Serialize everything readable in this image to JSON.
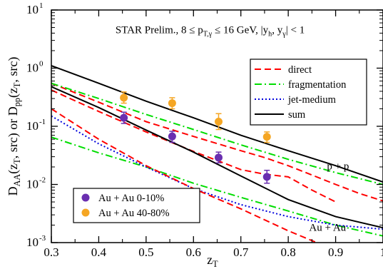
{
  "chart_data": {
    "type": "line",
    "xlim": [
      0.3,
      1.0
    ],
    "ylim": [
      0.001,
      10
    ],
    "yscale": "log",
    "grid": false,
    "xticks": [
      0.3,
      0.4,
      0.5,
      0.6,
      0.7,
      0.8,
      0.9,
      1.0
    ],
    "xtick_labels": [
      "0.3",
      "0.4",
      "0.5",
      "0.6",
      "0.7",
      "0.8",
      "0.9",
      "1"
    ],
    "yticks": [
      0.001,
      0.01,
      0.1,
      1,
      10
    ],
    "ytick_labels": [
      {
        "base": "10",
        "exp": "-3"
      },
      {
        "base": "10",
        "exp": "-2"
      },
      {
        "base": "10",
        "exp": "-1"
      },
      {
        "base": "10",
        "exp": "0"
      },
      {
        "base": "10",
        "exp": "1"
      }
    ],
    "xlabel": {
      "main": "z",
      "sub": "T"
    },
    "ylabel": "D_AA(z_T, src) or D_pp(z_T, src)",
    "ylabel_parts": [
      {
        "t": "D",
        "s": "n"
      },
      {
        "t": "AA",
        "s": "sub"
      },
      {
        "t": "(z",
        "s": "n"
      },
      {
        "t": "T",
        "s": "sub"
      },
      {
        "t": ", src) or D",
        "s": "n"
      },
      {
        "t": "pp",
        "s": "sub"
      },
      {
        "t": "(z",
        "s": "n"
      },
      {
        "t": "T",
        "s": "sub"
      },
      {
        "t": ", src)",
        "s": "n"
      }
    ],
    "title_parts": [
      {
        "t": "STAR Prelim., 8 ≤ p",
        "s": "n"
      },
      {
        "t": "T,γ",
        "s": "sub"
      },
      {
        "t": " ≤ 16 GeV, |y",
        "s": "n"
      },
      {
        "t": "h",
        "s": "sub"
      },
      {
        "t": ", y",
        "s": "n"
      },
      {
        "t": "γ",
        "s": "sub"
      },
      {
        "t": "| < 1",
        "s": "n"
      }
    ],
    "annotations": [
      {
        "text": "p + p",
        "x": 0.905,
        "y": 0.018
      },
      {
        "text": "Au + Au",
        "x": 0.883,
        "y": 0.0016
      }
    ],
    "legend_lines": {
      "position": "top-right",
      "entries": [
        {
          "label": "direct",
          "color": "#ff0000",
          "dash": "9,5"
        },
        {
          "label": "fragmentation",
          "color": "#00dd00",
          "dash": "10,4,2,4"
        },
        {
          "label": "jet-medium",
          "color": "#0000dd",
          "dash": "2,3"
        },
        {
          "label": "sum",
          "color": "#000000",
          "dash": ""
        }
      ]
    },
    "legend_points": {
      "position": "bottom-left",
      "entries": [
        {
          "label": "Au + Au 0-10%",
          "color": "#6a2fb0"
        },
        {
          "label": "Au + Au 40-80%",
          "color": "#f5a623"
        }
      ]
    },
    "series": [
      {
        "name": "direct",
        "system": "p + p",
        "color": "#ff0000",
        "dash": "9,5",
        "x": [
          0.3,
          0.4,
          0.5,
          0.6,
          0.7,
          0.75,
          0.8,
          0.85,
          0.9,
          0.95,
          1.0
        ],
        "y": [
          0.55,
          0.26,
          0.12,
          0.067,
          0.038,
          0.029,
          0.021,
          0.0145,
          0.01,
          0.007,
          0.0052
        ]
      },
      {
        "name": "fragmentation",
        "system": "p + p",
        "color": "#00dd00",
        "dash": "10,4,2,4",
        "x": [
          0.3,
          0.4,
          0.5,
          0.6,
          0.7,
          0.8,
          0.9,
          1.0
        ],
        "y": [
          0.55,
          0.3,
          0.16,
          0.088,
          0.048,
          0.027,
          0.016,
          0.01
        ]
      },
      {
        "name": "sum",
        "system": "p + p",
        "color": "#000000",
        "dash": "",
        "x": [
          0.3,
          0.4,
          0.5,
          0.6,
          0.7,
          0.8,
          0.9,
          1.0
        ],
        "y": [
          1.1,
          0.55,
          0.27,
          0.14,
          0.07,
          0.038,
          0.021,
          0.011
        ]
      },
      {
        "name": "direct",
        "system": "Au + Au",
        "color": "#ff0000",
        "dash": "9,5",
        "x": [
          0.3,
          0.4,
          0.5,
          0.6,
          0.7,
          0.75,
          0.8,
          0.85,
          0.9
        ],
        "y": [
          0.42,
          0.18,
          0.08,
          0.037,
          0.018,
          0.015,
          0.0135,
          0.008,
          0.005
        ]
      },
      {
        "name": "fragmentation",
        "system": "Au + Au",
        "color": "#00dd00",
        "dash": "10,4,2,4",
        "x": [
          0.3,
          0.4,
          0.5,
          0.6,
          0.7,
          0.8,
          0.9,
          1.0
        ],
        "y": [
          0.065,
          0.035,
          0.02,
          0.0105,
          0.006,
          0.0035,
          0.002,
          0.0013
        ]
      },
      {
        "name": "jet-medium",
        "system": "Au + Au",
        "color": "#0000dd",
        "dash": "2,3",
        "x": [
          0.3,
          0.4,
          0.5,
          0.6,
          0.7,
          0.8,
          0.9,
          1.0
        ],
        "y": [
          0.15,
          0.05,
          0.02,
          0.0085,
          0.0045,
          0.0028,
          0.002,
          0.0017
        ]
      },
      {
        "name": "direct (steep)",
        "system": "Au + Au",
        "color": "#ff0000",
        "dash": "9,5",
        "x": [
          0.3,
          0.4,
          0.5,
          0.6,
          0.7,
          0.8,
          0.86
        ],
        "y": [
          0.2,
          0.06,
          0.021,
          0.0085,
          0.0038,
          0.0016,
          0.001
        ]
      },
      {
        "name": "sum",
        "system": "Au + Au",
        "color": "#000000",
        "dash": "",
        "x": [
          0.3,
          0.4,
          0.5,
          0.6,
          0.7,
          0.8,
          0.9,
          1.0
        ],
        "y": [
          0.48,
          0.21,
          0.086,
          0.036,
          0.014,
          0.0055,
          0.0028,
          0.0018
        ]
      }
    ],
    "points": [
      {
        "name": "Au + Au 0-10%",
        "color": "#6a2fb0",
        "x": [
          0.453,
          0.555,
          0.653,
          0.755
        ],
        "y": [
          0.14,
          0.067,
          0.029,
          0.0135
        ],
        "err_lo": [
          0.112,
          0.053,
          0.0235,
          0.0105
        ],
        "err_hi": [
          0.175,
          0.082,
          0.036,
          0.0175
        ]
      },
      {
        "name": "Au + Au 40-80%",
        "color": "#f5a623",
        "x": [
          0.453,
          0.555,
          0.653,
          0.755
        ],
        "y": [
          0.31,
          0.25,
          0.12,
          0.066
        ],
        "err_lo": [
          0.25,
          0.2,
          0.088,
          0.053
        ],
        "err_hi": [
          0.39,
          0.31,
          0.165,
          0.08
        ]
      }
    ]
  }
}
